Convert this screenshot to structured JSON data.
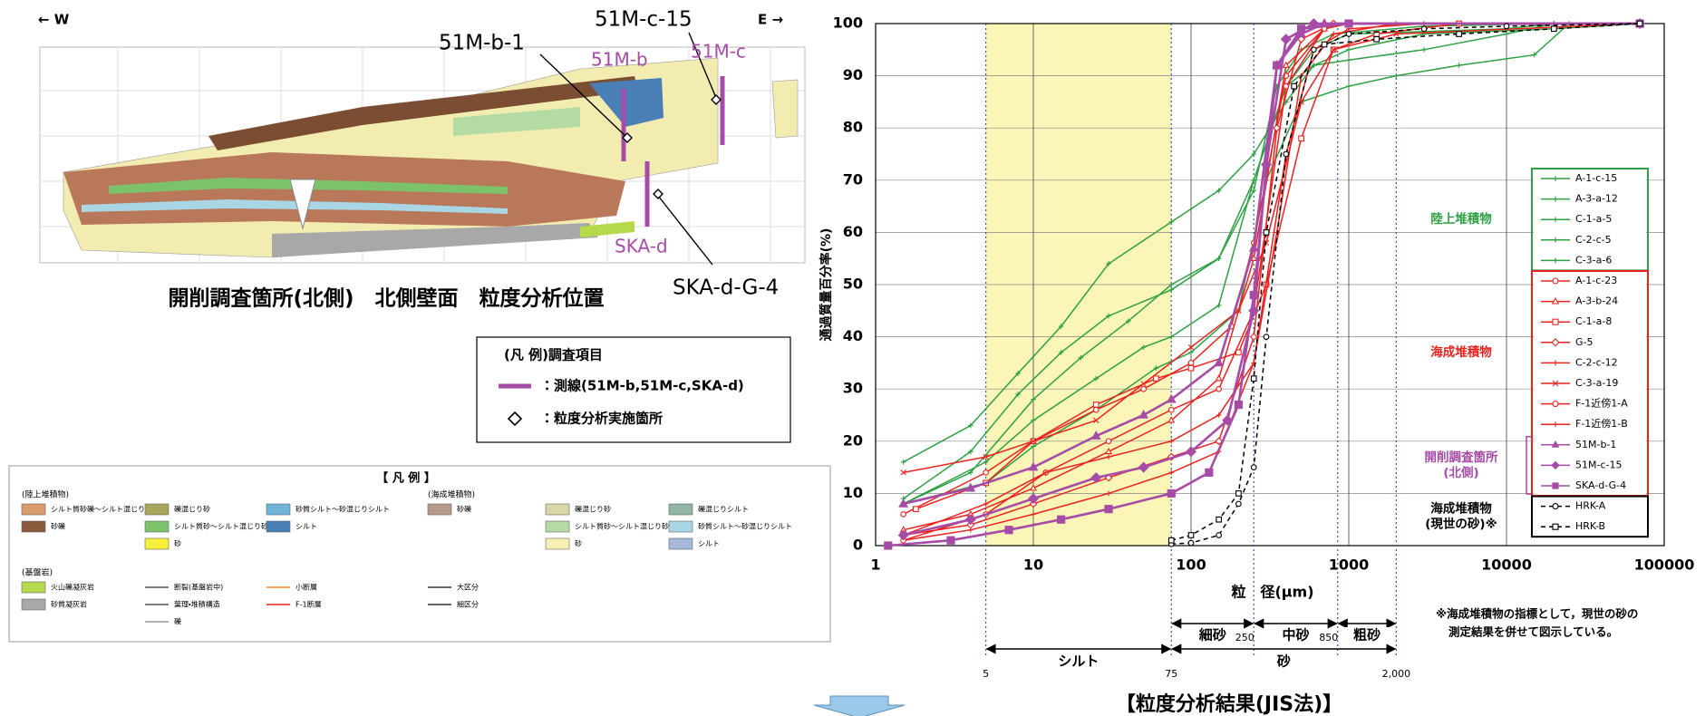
{
  "section": {
    "west": "← W",
    "east": "E →",
    "lines": [
      {
        "label": "51M-b"
      },
      {
        "label": "51M-c"
      },
      {
        "label": "SKA-d"
      }
    ],
    "points": [
      {
        "label": "51M-b-1"
      },
      {
        "label": "51M-c-15"
      },
      {
        "label": "SKA-d-G-4"
      }
    ],
    "caption": "開削調査箇所(北側)　北側壁面　粒度分析位置"
  },
  "legend_survey": {
    "title": "(凡 例)調査項目",
    "line_item": "：測線(51M-b,51M-c,SKA-d)",
    "point_item": "：粒度分析実施箇所"
  },
  "legend_geology": {
    "title": "【 凡 例 】",
    "groups": [
      {
        "label": "(陸上堆積物)",
        "columns": [
          [
            {
              "label": "シルト質砂礫〜シルト混じり砂礫",
              "swatch": "#d99a6c"
            },
            {
              "label": "砂礫",
              "swatch": "#8b5a3c"
            }
          ],
          [
            {
              "label": "礫混じり砂",
              "swatch": "#a9a65a"
            },
            {
              "label": "シルト質砂〜シルト混じり砂",
              "swatch": "#7cc26b"
            },
            {
              "label": "砂",
              "swatch": "#f5ef3a"
            }
          ],
          [
            {
              "label": "砂質シルト〜砂混じりシルト",
              "swatch": "#6fb4d9"
            },
            {
              "label": "シルト",
              "swatch": "#4a7fb5"
            }
          ]
        ]
      },
      {
        "label": "(海成堆積物)",
        "columns": [
          [
            {
              "label": "砂礫",
              "swatch": "#b59a8a"
            }
          ],
          [
            {
              "label": "礫混じり砂",
              "swatch": "#d9d6a8"
            },
            {
              "label": "シルト質砂〜シルト混じり砂",
              "swatch": "#b5dba5"
            },
            {
              "label": "砂",
              "swatch": "#f7f0b4"
            }
          ],
          [
            {
              "label": "礫混じりシルト",
              "swatch": "#8fb5a5"
            },
            {
              "label": "砂質シルト〜砂混じりシルト",
              "swatch": "#a9d6e5"
            },
            {
              "label": "シルト",
              "swatch": "#a5b9d9"
            }
          ]
        ]
      },
      {
        "label": "(基盤岩)",
        "columns": [
          [
            {
              "label": "火山礫凝灰岩",
              "swatch": "#b5d94a"
            },
            {
              "label": "砂質凝灰岩",
              "swatch": "#a8a8a8"
            }
          ],
          [
            {
              "label": "断裂(基盤岩中)",
              "line": "#555555"
            },
            {
              "label": "葉理・堆積構造",
              "line": "#555555"
            },
            {
              "label": "礫",
              "line": "#999999"
            }
          ],
          [
            {
              "label": "小断層",
              "line": "#f08a2a"
            },
            {
              "label": "F-1断層",
              "line": "#e8231f"
            }
          ],
          [
            {
              "label": "大区分",
              "line": "#333333"
            },
            {
              "label": "細区分",
              "line": "#333333"
            }
          ]
        ]
      }
    ]
  },
  "chart_data": {
    "type": "line",
    "title": "【粒度分析結果(JIS法)】",
    "x_label": "粒　径(μm)",
    "y_label": "通過質量百分率(%)",
    "xscale": "log",
    "xlim": [
      1,
      100000
    ],
    "ylim": [
      0,
      100
    ],
    "xticks": [
      1,
      10,
      100,
      1000,
      10000,
      100000
    ],
    "yticks": [
      0,
      10,
      20,
      30,
      40,
      50,
      60,
      70,
      80,
      90,
      100
    ],
    "grid": true,
    "size_classes_upper": [
      {
        "label": "細砂",
        "range": [
          75,
          250
        ]
      },
      {
        "label": "中砂",
        "range": [
          250,
          850
        ]
      },
      {
        "label": "粗砂",
        "range": [
          850,
          2000
        ]
      }
    ],
    "size_classes_lower": [
      {
        "label": "シルト",
        "range": [
          5,
          75
        ],
        "highlight_color": "#fbf5b8"
      },
      {
        "label": "砂",
        "range": [
          75,
          2000
        ]
      }
    ],
    "boundary_labels_upper": [
      250,
      850
    ],
    "boundary_labels_lower": [
      5,
      75,
      {
        "value": 2000,
        "label": "2,000"
      }
    ],
    "note": [
      "※海成堆積物の指標として，現世の砂の",
      "測定結果を併せて図示している。"
    ],
    "legend_groups": [
      {
        "lines": [
          "陸上堆積物"
        ],
        "color": "#2ea043",
        "frame": "box"
      },
      {
        "lines": [
          "海成堆積物"
        ],
        "color": "#e8231f",
        "frame": "box"
      },
      {
        "lines": [
          "開削調査箇所",
          "(北側)"
        ],
        "color": "#a64ca6",
        "frame": "bracket"
      },
      {
        "lines": [
          "海成堆積物",
          "(現世の砂)※"
        ],
        "color": "#000000",
        "frame": "box"
      }
    ],
    "series": [
      {
        "name": "A-1-c-15",
        "color": "#2ea043",
        "marker": "plus",
        "x": [
          1.5,
          4,
          8,
          15,
          30,
          75,
          150,
          250,
          400,
          600,
          1000,
          3000,
          20000,
          70000
        ],
        "values": [
          16,
          23,
          33,
          42,
          54,
          62,
          68,
          75,
          85,
          92,
          95,
          98,
          99,
          100
        ]
      },
      {
        "name": "A-3-a-12",
        "color": "#2ea043",
        "marker": "plus",
        "x": [
          1.5,
          4,
          8,
          15,
          30,
          75,
          150,
          250,
          400,
          600,
          1000,
          10000,
          20000
        ],
        "values": [
          9,
          18,
          29,
          37,
          44,
          49,
          55,
          70,
          88,
          95,
          98,
          99,
          100
        ]
      },
      {
        "name": "C-1-a-5",
        "color": "#2ea043",
        "marker": "plus",
        "x": [
          1.5,
          4,
          10,
          20,
          40,
          75,
          150,
          250,
          350,
          500,
          800,
          3000,
          20000
        ],
        "values": [
          8,
          14,
          28,
          36,
          43,
          50,
          55,
          68,
          88,
          95,
          98,
          99.5,
          100
        ]
      },
      {
        "name": "C-2-c-5",
        "color": "#2ea043",
        "marker": "plus",
        "x": [
          1.5,
          5,
          10,
          25,
          50,
          75,
          150,
          250,
          400,
          600,
          1000,
          3000,
          10000,
          20000
        ],
        "values": [
          8,
          16,
          24,
          32,
          38,
          40,
          46,
          70,
          88,
          92,
          93,
          95,
          98,
          100
        ]
      },
      {
        "name": "C-3-a-6",
        "color": "#2ea043",
        "marker": "plus",
        "x": [
          1.5,
          5,
          10,
          25,
          60,
          100,
          200,
          300,
          500,
          1000,
          2000,
          5000,
          15000,
          25000
        ],
        "values": [
          8,
          12,
          19,
          26,
          34,
          37,
          45,
          70,
          85,
          88,
          90,
          92,
          94,
          100
        ]
      },
      {
        "name": "A-1-c-23",
        "color": "#e8231f",
        "marker": "circle",
        "x": [
          1.5,
          5,
          10,
          25,
          50,
          100,
          180,
          250,
          400,
          700,
          1000,
          70000
        ],
        "values": [
          6,
          14,
          20,
          26,
          30,
          35,
          42,
          58,
          90,
          99,
          100,
          100
        ]
      },
      {
        "name": "A-3-b-24",
        "color": "#e8231f",
        "marker": "triangle",
        "x": [
          1.5,
          4,
          10,
          30,
          75,
          150,
          250,
          400,
          700,
          1000
        ],
        "values": [
          3,
          6,
          11,
          18,
          24,
          32,
          55,
          92,
          99,
          100
        ]
      },
      {
        "name": "C-1-a-8",
        "color": "#e8231f",
        "marker": "square",
        "x": [
          1.8,
          5,
          10,
          25,
          60,
          100,
          200,
          300,
          500,
          800,
          1500,
          5000
        ],
        "values": [
          7,
          12,
          20,
          27,
          32,
          34,
          37,
          50,
          78,
          95,
          98,
          100
        ]
      },
      {
        "name": "G-5",
        "color": "#e8231f",
        "marker": "diamond",
        "x": [
          1.5,
          4,
          10,
          30,
          75,
          150,
          250,
          350,
          500,
          800,
          70000
        ],
        "values": [
          2,
          4,
          8,
          13,
          17,
          20,
          40,
          80,
          97,
          100,
          100
        ]
      },
      {
        "name": "C-2-c-12",
        "color": "#e8231f",
        "marker": "plus",
        "x": [
          1.5,
          4,
          10,
          30,
          75,
          150,
          250,
          400,
          600,
          1000,
          3000
        ],
        "values": [
          1,
          3,
          6,
          10,
          14,
          18,
          35,
          75,
          95,
          99,
          100
        ]
      },
      {
        "name": "C-3-a-19",
        "color": "#e8231f",
        "marker": "cross",
        "x": [
          1.5,
          5,
          10,
          25,
          50,
          100,
          200,
          300,
          500,
          800,
          2000,
          70000
        ],
        "values": [
          14,
          17,
          20,
          24,
          31,
          38,
          45,
          58,
          85,
          95,
          98,
          100
        ]
      },
      {
        "name": "F-1近傍1-A",
        "color": "#e8231f",
        "marker": "circle",
        "x": [
          1.5,
          5,
          12,
          30,
          75,
          150,
          250,
          400,
          700,
          1000
        ],
        "values": [
          1,
          6,
          14,
          20,
          26,
          30,
          45,
          88,
          99,
          100
        ]
      },
      {
        "name": "F-1近傍1-B",
        "color": "#e8231f",
        "marker": "plus",
        "x": [
          1.5,
          5,
          12,
          30,
          75,
          150,
          250,
          350,
          500,
          800,
          2000
        ],
        "values": [
          2,
          8,
          14,
          17,
          20,
          25,
          35,
          60,
          90,
          98,
          100
        ]
      },
      {
        "name": "51M-b-1",
        "color": "#a64ca6",
        "marker": "triangle-filled",
        "x": [
          1.5,
          4,
          10,
          25,
          50,
          75,
          150,
          250,
          350,
          500,
          700,
          70000
        ],
        "values": [
          8,
          11,
          15,
          21,
          25,
          28,
          35,
          57,
          92,
          98,
          100,
          100
        ]
      },
      {
        "name": "51M-c-15",
        "color": "#a64ca6",
        "marker": "diamond-filled",
        "x": [
          1.5,
          4,
          10,
          25,
          50,
          100,
          170,
          250,
          300,
          400,
          600,
          70000
        ],
        "values": [
          2,
          5,
          9,
          13,
          15,
          18,
          24,
          45,
          73,
          97,
          100,
          100
        ]
      },
      {
        "name": "SKA-d-G-4",
        "color": "#a64ca6",
        "marker": "square-filled",
        "x": [
          1.2,
          3,
          7,
          15,
          30,
          75,
          130,
          200,
          250,
          350,
          500,
          1000,
          70000
        ],
        "values": [
          0,
          1,
          3,
          5,
          7,
          10,
          14,
          27,
          48,
          92,
          99,
          100,
          100
        ]
      },
      {
        "name": "HRK-A",
        "color": "#000000",
        "marker": "circle",
        "style": "dashed",
        "x": [
          75,
          100,
          150,
          200,
          250,
          300,
          400,
          600,
          1000,
          3000,
          10000,
          70000
        ],
        "values": [
          0.3,
          0.5,
          2,
          8,
          15,
          40,
          75,
          95,
          98,
          99,
          99.5,
          100
        ]
      },
      {
        "name": "HRK-B",
        "color": "#000000",
        "marker": "square",
        "style": "dashed",
        "x": [
          75,
          100,
          150,
          200,
          250,
          300,
          450,
          700,
          1500,
          5000,
          20000,
          70000
        ],
        "values": [
          1,
          2,
          5,
          10,
          32,
          60,
          88,
          96,
          97,
          98,
          99,
          100
        ]
      }
    ]
  }
}
